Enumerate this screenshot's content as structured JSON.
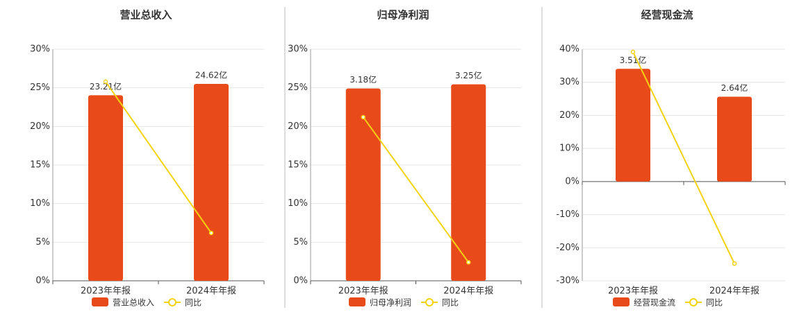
{
  "chart_data": [
    {
      "type": "bar",
      "title": "营业总收入",
      "categories": [
        "2023年年报",
        "2024年年报"
      ],
      "ylim": [
        0,
        30
      ],
      "yticks": [
        {
          "value": 0,
          "label": "0%"
        },
        {
          "value": 5,
          "label": "5%"
        },
        {
          "value": 10,
          "label": "10%"
        },
        {
          "value": 15,
          "label": "15%"
        },
        {
          "value": 20,
          "label": "20%"
        },
        {
          "value": 25,
          "label": "25%"
        },
        {
          "value": 30,
          "label": "30%"
        }
      ],
      "y2lim": [
        0,
        28.96
      ],
      "grid": true,
      "series": [
        {
          "name": "营业总收入",
          "type": "bar",
          "axis": "y2",
          "color": "#e84a1a",
          "values": [
            23.21,
            24.62
          ],
          "value_labels": [
            "23.21亿",
            "24.62亿"
          ]
        },
        {
          "name": "同比",
          "type": "line",
          "color": "#f2d312",
          "values": [
            25.8,
            6.2
          ]
        }
      ]
    },
    {
      "type": "bar",
      "title": "归母净利润",
      "categories": [
        "2023年年报",
        "2024年年报"
      ],
      "ylim": [
        0,
        30
      ],
      "yticks": [
        {
          "value": 0,
          "label": "0%"
        },
        {
          "value": 5,
          "label": "5%"
        },
        {
          "value": 10,
          "label": "10%"
        },
        {
          "value": 15,
          "label": "15%"
        },
        {
          "value": 20,
          "label": "20%"
        },
        {
          "value": 25,
          "label": "25%"
        },
        {
          "value": 30,
          "label": "30%"
        }
      ],
      "y2lim": [
        0,
        3.83
      ],
      "grid": true,
      "series": [
        {
          "name": "归母净利润",
          "type": "bar",
          "axis": "y2",
          "color": "#e84a1a",
          "values": [
            3.18,
            3.25
          ],
          "value_labels": [
            "3.18亿",
            "3.25亿"
          ]
        },
        {
          "name": "同比",
          "type": "line",
          "color": "#f2d312",
          "values": [
            21.2,
            2.4
          ]
        }
      ]
    },
    {
      "type": "bar",
      "title": "经营现金流",
      "categories": [
        "2023年年报",
        "2024年年报"
      ],
      "ylim": [
        -30,
        40
      ],
      "yticks": [
        {
          "value": -30,
          "label": "-30%"
        },
        {
          "value": -20,
          "label": "-20%"
        },
        {
          "value": -10,
          "label": "-10%"
        },
        {
          "value": 0,
          "label": "0%"
        },
        {
          "value": 10,
          "label": "10%"
        },
        {
          "value": 20,
          "label": "20%"
        },
        {
          "value": 30,
          "label": "30%"
        },
        {
          "value": 40,
          "label": "40%"
        }
      ],
      "y2lim": [
        -3.09,
        4.12
      ],
      "grid": true,
      "series": [
        {
          "name": "经营现金流",
          "type": "bar",
          "axis": "y2",
          "color": "#e84a1a",
          "values": [
            3.51,
            2.64
          ],
          "value_labels": [
            "3.51亿",
            "2.64亿"
          ]
        },
        {
          "name": "同比",
          "type": "line",
          "color": "#f2d312",
          "values": [
            39.2,
            -24.8
          ]
        }
      ]
    }
  ]
}
